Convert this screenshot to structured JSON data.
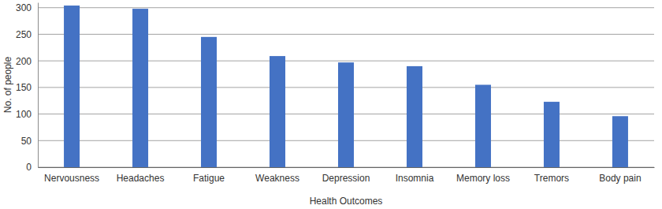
{
  "chart_data": {
    "type": "bar",
    "categories": [
      "Nervousness",
      "Headaches",
      "Fatigue",
      "Weakness",
      "Depression",
      "Insomnia",
      "Memory loss",
      "Tremors",
      "Body pain"
    ],
    "values": [
      304,
      298,
      245,
      209,
      197,
      190,
      155,
      123,
      96
    ],
    "color": "#4472c4",
    "x_label": "Health Outcomes",
    "y_label": "No. of people",
    "ylim": [
      0,
      310
    ],
    "yticks": [
      0,
      50,
      100,
      150,
      200,
      250,
      300
    ],
    "grid": true
  }
}
